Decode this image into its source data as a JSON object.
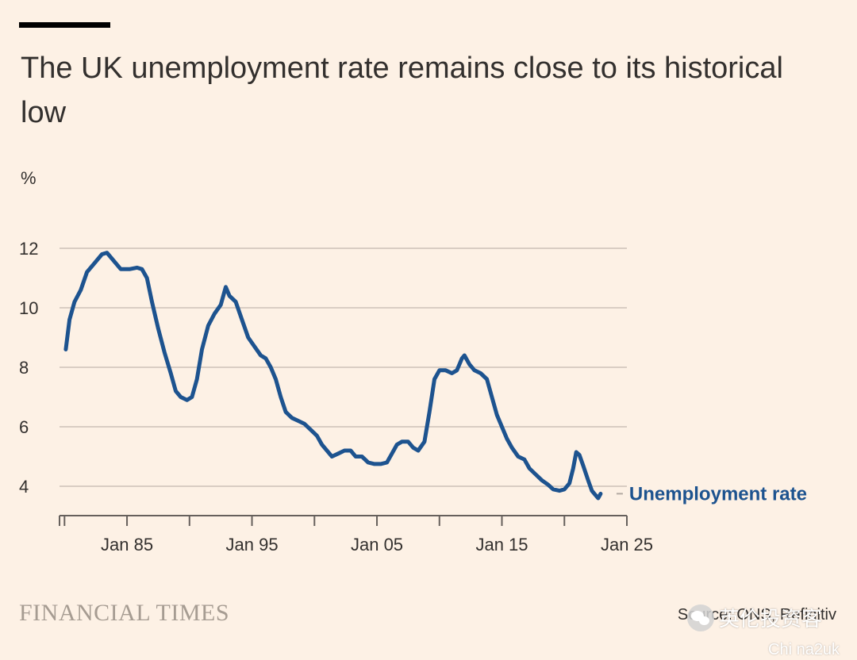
{
  "title": "The UK unemployment rate remains close to its historical low",
  "y_unit": "%",
  "brand": "FINANCIAL TIMES",
  "source": "Source: ONS, Refinitiv",
  "watermark": {
    "text": "英伦投资客",
    "sub": "Chi na2uk"
  },
  "colors": {
    "background": "#fdf1e5",
    "line": "#1d538f",
    "grid": "#d9cdc3",
    "axis": "#66605c",
    "text": "#33302e"
  },
  "chart_data": {
    "type": "line",
    "title": "The UK unemployment rate remains close to its historical low",
    "xlabel": "",
    "ylabel": "%",
    "xlim": [
      1979.6,
      2025.0
    ],
    "ylim": [
      3.0,
      12.0
    ],
    "yticks": [
      4,
      6,
      8,
      10,
      12
    ],
    "xticks": [
      {
        "value": 1985,
        "label": "Jan 85"
      },
      {
        "value": 1995,
        "label": "Jan 95"
      },
      {
        "value": 2005,
        "label": "Jan 05"
      },
      {
        "value": 2015,
        "label": "Jan 15"
      },
      {
        "value": 2025,
        "label": "Jan 25"
      }
    ],
    "minor_xticks": [
      1980,
      1990,
      2000,
      2010,
      2020
    ],
    "grid": true,
    "series": [
      {
        "name": "Unemployment rate",
        "points": [
          [
            1980.1,
            8.6
          ],
          [
            1980.4,
            9.6
          ],
          [
            1980.8,
            10.2
          ],
          [
            1981.3,
            10.6
          ],
          [
            1981.8,
            11.2
          ],
          [
            1982.4,
            11.5
          ],
          [
            1983.0,
            11.8
          ],
          [
            1983.4,
            11.85
          ],
          [
            1983.9,
            11.6
          ],
          [
            1984.5,
            11.3
          ],
          [
            1985.2,
            11.3
          ],
          [
            1985.8,
            11.35
          ],
          [
            1986.2,
            11.3
          ],
          [
            1986.6,
            11.0
          ],
          [
            1987.0,
            10.2
          ],
          [
            1987.5,
            9.3
          ],
          [
            1988.0,
            8.5
          ],
          [
            1988.5,
            7.8
          ],
          [
            1988.9,
            7.2
          ],
          [
            1989.3,
            7.0
          ],
          [
            1989.8,
            6.9
          ],
          [
            1990.2,
            7.0
          ],
          [
            1990.6,
            7.6
          ],
          [
            1991.0,
            8.6
          ],
          [
            1991.5,
            9.4
          ],
          [
            1992.0,
            9.8
          ],
          [
            1992.5,
            10.1
          ],
          [
            1992.9,
            10.7
          ],
          [
            1993.2,
            10.4
          ],
          [
            1993.7,
            10.2
          ],
          [
            1994.2,
            9.6
          ],
          [
            1994.7,
            9.0
          ],
          [
            1995.2,
            8.7
          ],
          [
            1995.7,
            8.4
          ],
          [
            1996.1,
            8.3
          ],
          [
            1996.5,
            8.0
          ],
          [
            1996.9,
            7.6
          ],
          [
            1997.3,
            7.0
          ],
          [
            1997.7,
            6.5
          ],
          [
            1998.2,
            6.3
          ],
          [
            1998.7,
            6.2
          ],
          [
            1999.2,
            6.1
          ],
          [
            1999.7,
            5.9
          ],
          [
            2000.2,
            5.7
          ],
          [
            2000.6,
            5.4
          ],
          [
            2001.0,
            5.2
          ],
          [
            2001.4,
            5.0
          ],
          [
            2001.9,
            5.1
          ],
          [
            2002.4,
            5.2
          ],
          [
            2002.9,
            5.2
          ],
          [
            2003.3,
            5.0
          ],
          [
            2003.8,
            5.0
          ],
          [
            2004.3,
            4.8
          ],
          [
            2004.8,
            4.75
          ],
          [
            2005.3,
            4.75
          ],
          [
            2005.8,
            4.8
          ],
          [
            2006.2,
            5.1
          ],
          [
            2006.6,
            5.4
          ],
          [
            2007.0,
            5.5
          ],
          [
            2007.5,
            5.5
          ],
          [
            2007.9,
            5.3
          ],
          [
            2008.3,
            5.2
          ],
          [
            2008.8,
            5.5
          ],
          [
            2009.2,
            6.5
          ],
          [
            2009.6,
            7.6
          ],
          [
            2010.0,
            7.9
          ],
          [
            2010.5,
            7.9
          ],
          [
            2011.0,
            7.8
          ],
          [
            2011.4,
            7.9
          ],
          [
            2011.8,
            8.3
          ],
          [
            2012.0,
            8.4
          ],
          [
            2012.4,
            8.1
          ],
          [
            2012.8,
            7.9
          ],
          [
            2013.3,
            7.8
          ],
          [
            2013.8,
            7.6
          ],
          [
            2014.2,
            7.0
          ],
          [
            2014.6,
            6.4
          ],
          [
            2015.0,
            6.0
          ],
          [
            2015.4,
            5.6
          ],
          [
            2015.8,
            5.3
          ],
          [
            2016.3,
            5.0
          ],
          [
            2016.8,
            4.9
          ],
          [
            2017.2,
            4.6
          ],
          [
            2017.7,
            4.4
          ],
          [
            2018.2,
            4.2
          ],
          [
            2018.7,
            4.05
          ],
          [
            2019.1,
            3.9
          ],
          [
            2019.6,
            3.85
          ],
          [
            2020.0,
            3.9
          ],
          [
            2020.4,
            4.1
          ],
          [
            2020.7,
            4.6
          ],
          [
            2020.95,
            5.15
          ],
          [
            2021.2,
            5.05
          ],
          [
            2021.5,
            4.7
          ],
          [
            2021.9,
            4.2
          ],
          [
            2022.2,
            3.85
          ],
          [
            2022.5,
            3.7
          ],
          [
            2022.7,
            3.6
          ],
          [
            2022.9,
            3.75
          ]
        ]
      }
    ]
  }
}
